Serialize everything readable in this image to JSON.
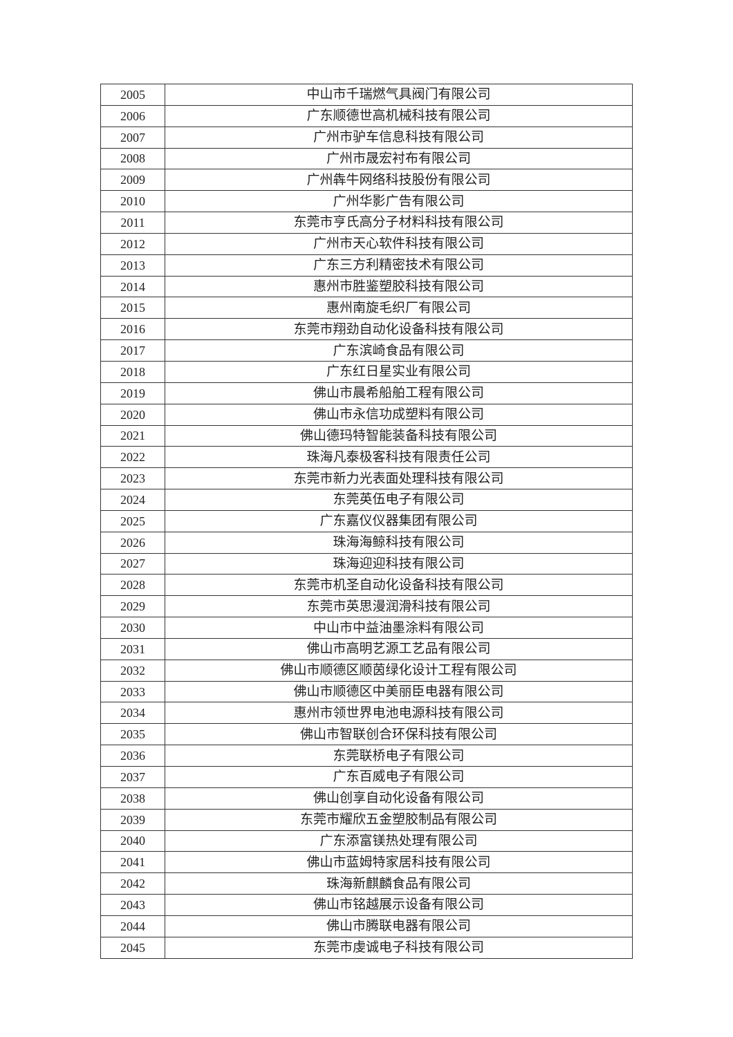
{
  "table": {
    "rows": [
      {
        "no": "2005",
        "name": "中山市千瑞燃气具阀门有限公司"
      },
      {
        "no": "2006",
        "name": "广东顺德世高机械科技有限公司"
      },
      {
        "no": "2007",
        "name": "广州市驴车信息科技有限公司"
      },
      {
        "no": "2008",
        "name": "广州市晟宏衬布有限公司"
      },
      {
        "no": "2009",
        "name": "广州犇牛网络科技股份有限公司"
      },
      {
        "no": "2010",
        "name": "广州华影广告有限公司"
      },
      {
        "no": "2011",
        "name": "东莞市亨氏高分子材料科技有限公司"
      },
      {
        "no": "2012",
        "name": "广州市天心软件科技有限公司"
      },
      {
        "no": "2013",
        "name": "广东三方利精密技术有限公司"
      },
      {
        "no": "2014",
        "name": "惠州市胜鉴塑胶科技有限公司"
      },
      {
        "no": "2015",
        "name": "惠州南旋毛织厂有限公司"
      },
      {
        "no": "2016",
        "name": "东莞市翔劲自动化设备科技有限公司"
      },
      {
        "no": "2017",
        "name": "广东滨崎食品有限公司"
      },
      {
        "no": "2018",
        "name": "广东红日星实业有限公司"
      },
      {
        "no": "2019",
        "name": "佛山市晨希船舶工程有限公司"
      },
      {
        "no": "2020",
        "name": "佛山市永信功成塑料有限公司"
      },
      {
        "no": "2021",
        "name": "佛山德玛特智能装备科技有限公司"
      },
      {
        "no": "2022",
        "name": "珠海凡泰极客科技有限责任公司"
      },
      {
        "no": "2023",
        "name": "东莞市新力光表面处理科技有限公司"
      },
      {
        "no": "2024",
        "name": "东莞英伍电子有限公司"
      },
      {
        "no": "2025",
        "name": "广东嘉仪仪器集团有限公司"
      },
      {
        "no": "2026",
        "name": "珠海海鲸科技有限公司"
      },
      {
        "no": "2027",
        "name": "珠海迎迎科技有限公司"
      },
      {
        "no": "2028",
        "name": "东莞市机圣自动化设备科技有限公司"
      },
      {
        "no": "2029",
        "name": "东莞市英思漫润滑科技有限公司"
      },
      {
        "no": "2030",
        "name": "中山市中益油墨涂料有限公司"
      },
      {
        "no": "2031",
        "name": "佛山市高明艺源工艺品有限公司"
      },
      {
        "no": "2032",
        "name": "佛山市顺德区顺茵绿化设计工程有限公司"
      },
      {
        "no": "2033",
        "name": "佛山市顺德区中美丽臣电器有限公司"
      },
      {
        "no": "2034",
        "name": "惠州市领世界电池电源科技有限公司"
      },
      {
        "no": "2035",
        "name": "佛山市智联创合环保科技有限公司"
      },
      {
        "no": "2036",
        "name": "东莞联桥电子有限公司"
      },
      {
        "no": "2037",
        "name": "广东百威电子有限公司"
      },
      {
        "no": "2038",
        "name": "佛山创享自动化设备有限公司"
      },
      {
        "no": "2039",
        "name": "东莞市耀欣五金塑胶制品有限公司"
      },
      {
        "no": "2040",
        "name": "广东添富镁热处理有限公司"
      },
      {
        "no": "2041",
        "name": "佛山市蓝姆特家居科技有限公司"
      },
      {
        "no": "2042",
        "name": "珠海新麒麟食品有限公司"
      },
      {
        "no": "2043",
        "name": "佛山市铭越展示设备有限公司"
      },
      {
        "no": "2044",
        "name": "佛山市腾联电器有限公司"
      },
      {
        "no": "2045",
        "name": "东莞市虔诚电子科技有限公司"
      }
    ]
  }
}
